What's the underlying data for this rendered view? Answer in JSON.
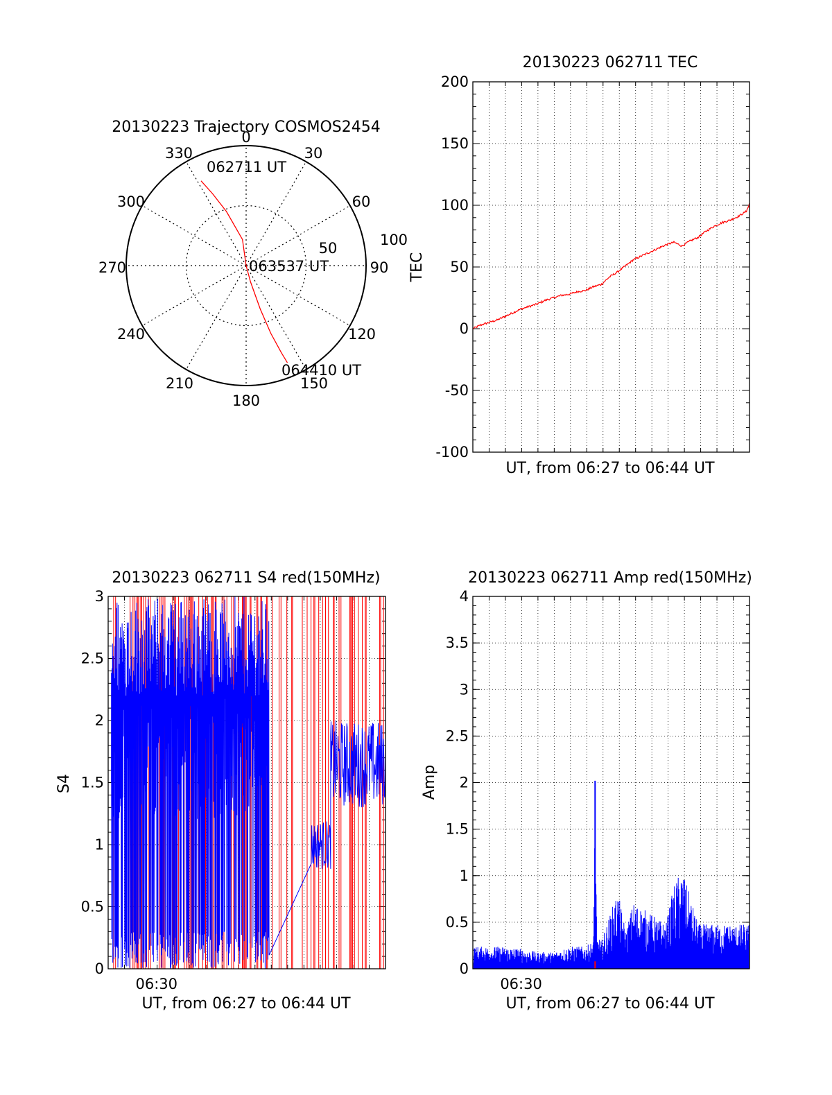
{
  "colors": {
    "red": "#ff0000",
    "blue": "#0000ff",
    "axis": "#000000",
    "grid": "#000000",
    "background": "#ffffff"
  },
  "chart_data": [
    {
      "type": "polar",
      "title": "20130223 Trajectory COSMOS2454",
      "angle_labels": [
        "0",
        "30",
        "60",
        "90",
        "120",
        "150",
        "180",
        "210",
        "240",
        "270",
        "300",
        "330"
      ],
      "radius_labels": [
        "50",
        "100"
      ],
      "radius_max": 100,
      "grid": true,
      "series": [
        {
          "color": "#ff0000",
          "points": [
            [
              -28,
              80
            ],
            [
              -25,
              66
            ],
            [
              -20,
              48
            ],
            [
              -8,
              22
            ],
            [
              0,
              0
            ],
            [
              165,
              14
            ],
            [
              162,
              38
            ],
            [
              160,
              60
            ],
            [
              158,
              78
            ],
            [
              157,
              88
            ]
          ]
        }
      ],
      "annotations": [
        {
          "text": "062711 UT",
          "azimuth": -9,
          "radius": 82
        },
        {
          "text": "063537 UT",
          "azimuth": 90,
          "radius": 22
        },
        {
          "text": "064410 UT",
          "azimuth": 162,
          "radius": 95
        }
      ]
    },
    {
      "type": "line",
      "title": "20130223 062711 TEC",
      "xlabel": "UT, from 06:27 to 06:44 UT",
      "ylabel": "TEC",
      "xlim": [
        0,
        17.2
      ],
      "ylim": [
        -100,
        200
      ],
      "yticks": [
        -100,
        -50,
        0,
        50,
        100,
        150,
        200
      ],
      "grid": true,
      "series": [
        {
          "color": "#ff0000",
          "x": [
            0,
            0.5,
            1,
            1.5,
            2,
            2.5,
            3,
            3.5,
            4,
            4.5,
            5,
            5.5,
            6,
            6.5,
            7,
            7.5,
            8,
            8.5,
            9,
            9.5,
            10,
            10.5,
            11,
            11.5,
            12,
            12.5,
            13,
            13.5,
            14,
            14.5,
            15,
            15.5,
            16,
            16.5,
            17,
            17.2
          ],
          "y": [
            0,
            3,
            5,
            7,
            10,
            13,
            16,
            18,
            20,
            23,
            25,
            27,
            28,
            30,
            31,
            34,
            36,
            42,
            46,
            51,
            56,
            59,
            62,
            65,
            68,
            70,
            67,
            71,
            74,
            79,
            83,
            86,
            88,
            91,
            95,
            101
          ]
        }
      ]
    },
    {
      "type": "line",
      "title": "20130223 062711 S4 red(150MHz)",
      "xlabel": "UT, from 06:27 to 06:44 UT",
      "ylabel": "S4",
      "xlim": [
        0,
        17.2
      ],
      "ylim": [
        0,
        3
      ],
      "yticks": [
        "0",
        "0.5",
        "1",
        "1.5",
        "2",
        "2.5",
        "3"
      ],
      "xtick_labels": [
        {
          "x": 3,
          "label": "06:30"
        }
      ],
      "grid": true,
      "series": [
        {
          "color": "#ff0000",
          "note_values": []
        },
        {
          "color": "#0000ff",
          "segments": [
            {
              "from": 0.2,
              "to": 10.0,
              "level_max": 3,
              "level_min": 0
            },
            {
              "from": 12.6,
              "to": 13.8,
              "level": 1.0
            },
            {
              "from": 13.8,
              "to": 17.2,
              "level": 1.6
            }
          ]
        }
      ]
    },
    {
      "type": "line",
      "title": "20130223 062711 Amp red(150MHz)",
      "xlabel": "UT, from 06:27 to 06:44 UT",
      "ylabel": "Amp",
      "xlim": [
        0,
        17.2
      ],
      "ylim": [
        0,
        4
      ],
      "yticks": [
        "0",
        "0.5",
        "1",
        "1.5",
        "2",
        "2.5",
        "3",
        "3.5",
        "4"
      ],
      "xtick_labels": [
        {
          "x": 3,
          "label": "06:30"
        }
      ],
      "grid": true,
      "series": [
        {
          "color": "#0000ff",
          "x": [
            0,
            1,
            2,
            3,
            4,
            5,
            6,
            7,
            7.5,
            7.6,
            7.7,
            8,
            9,
            9.5,
            10,
            11,
            12,
            12.5,
            13,
            14,
            15,
            16,
            17
          ],
          "y": [
            0.2,
            0.2,
            0.2,
            0.18,
            0.15,
            0.15,
            0.2,
            0.2,
            0.25,
            2.0,
            0.3,
            0.25,
            0.7,
            0.35,
            0.6,
            0.5,
            0.4,
            0.75,
            0.9,
            0.4,
            0.4,
            0.4,
            0.4
          ]
        }
      ]
    }
  ]
}
